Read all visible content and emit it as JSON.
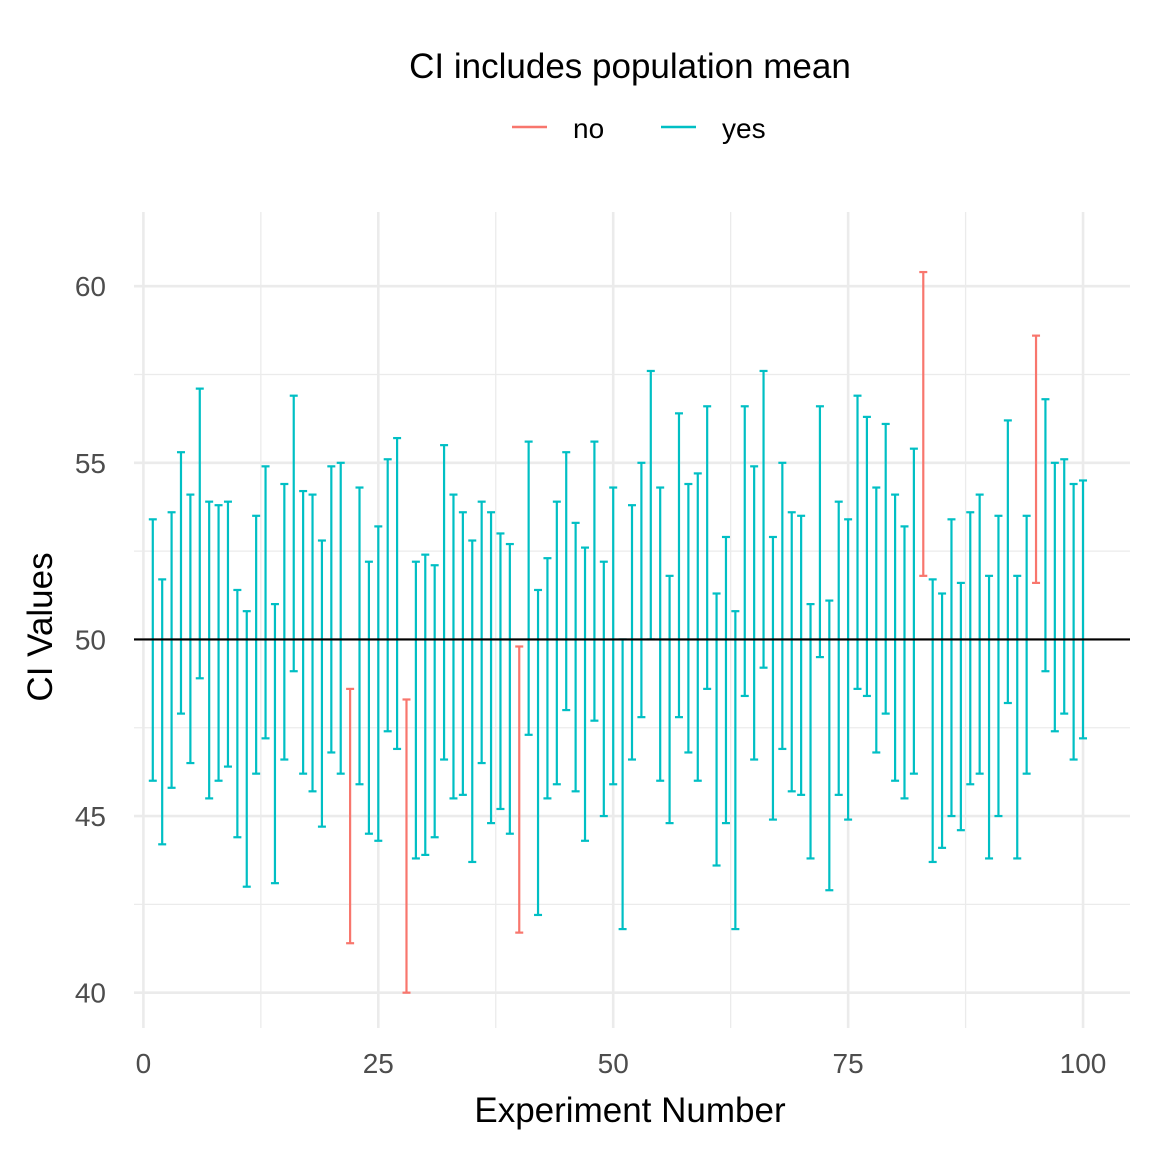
{
  "chart_data": {
    "type": "errorbar",
    "legend": {
      "title": "CI includes population mean",
      "position": "top",
      "entries": [
        {
          "label": "no",
          "color": "#F8766D"
        },
        {
          "label": "yes",
          "color": "#00BFC4"
        }
      ]
    },
    "xlabel": "Experiment Number",
    "ylabel": "CI Values",
    "xlim": [
      -1,
      105
    ],
    "ylim": [
      39,
      62.1
    ],
    "xticks": [
      0,
      25,
      50,
      75,
      100
    ],
    "yticks": [
      40,
      45,
      50,
      55,
      60
    ],
    "reference_line": {
      "y": 50,
      "color": "#000000"
    },
    "grid": true,
    "colors": {
      "no": "#F8766D",
      "yes": "#00BFC4",
      "grid": "#EBEBEB",
      "text": "#4D4D4D"
    },
    "x": [
      1,
      2,
      3,
      4,
      5,
      6,
      7,
      8,
      9,
      10,
      11,
      12,
      13,
      14,
      15,
      16,
      17,
      18,
      19,
      20,
      21,
      22,
      23,
      24,
      25,
      26,
      27,
      28,
      29,
      30,
      31,
      32,
      33,
      34,
      35,
      36,
      37,
      38,
      39,
      40,
      41,
      42,
      43,
      44,
      45,
      46,
      47,
      48,
      49,
      50,
      51,
      52,
      53,
      54,
      55,
      56,
      57,
      58,
      59,
      60,
      61,
      62,
      63,
      64,
      65,
      66,
      67,
      68,
      69,
      70,
      71,
      72,
      73,
      74,
      75,
      76,
      77,
      78,
      79,
      80,
      81,
      82,
      83,
      84,
      85,
      86,
      87,
      88,
      89,
      90,
      91,
      92,
      93,
      94,
      95,
      96,
      97,
      98,
      99,
      100
    ],
    "lower": [
      46.0,
      44.2,
      45.8,
      47.9,
      46.5,
      48.9,
      45.5,
      46.0,
      46.4,
      44.4,
      43.0,
      46.2,
      47.2,
      43.1,
      46.6,
      49.1,
      46.2,
      45.7,
      44.7,
      46.8,
      46.2,
      41.4,
      45.9,
      44.5,
      44.3,
      47.4,
      46.9,
      40.0,
      43.8,
      43.9,
      44.4,
      46.6,
      45.5,
      45.6,
      43.7,
      46.5,
      44.8,
      45.2,
      44.5,
      41.7,
      47.3,
      42.2,
      45.5,
      45.9,
      48.0,
      45.7,
      44.3,
      47.7,
      45.0,
      45.9,
      41.8,
      46.6,
      47.8,
      50.0,
      46.0,
      44.8,
      47.8,
      46.8,
      46.0,
      48.6,
      43.6,
      44.8,
      41.8,
      48.4,
      46.6,
      49.2,
      44.9,
      46.9,
      45.7,
      45.6,
      43.8,
      49.5,
      42.9,
      45.6,
      44.9,
      48.6,
      48.4,
      46.8,
      47.9,
      46.0,
      45.5,
      46.2,
      51.8,
      43.7,
      44.1,
      45.0,
      44.6,
      45.9,
      46.2,
      43.8,
      45.0,
      48.2,
      43.8,
      46.2,
      51.6,
      49.1,
      47.4,
      47.9,
      46.6,
      47.2
    ],
    "upper": [
      53.4,
      51.7,
      53.6,
      55.3,
      54.1,
      57.1,
      53.9,
      53.8,
      53.9,
      51.4,
      50.8,
      53.5,
      54.9,
      51.0,
      54.4,
      56.9,
      54.2,
      54.1,
      52.8,
      54.9,
      55.0,
      48.6,
      54.3,
      52.2,
      53.2,
      55.1,
      55.7,
      48.3,
      52.2,
      52.4,
      52.1,
      55.5,
      54.1,
      53.6,
      52.8,
      53.9,
      53.6,
      53.0,
      52.7,
      49.8,
      55.6,
      51.4,
      52.3,
      53.9,
      55.3,
      53.3,
      52.6,
      55.6,
      52.2,
      54.3,
      50.0,
      53.8,
      55.0,
      57.6,
      54.3,
      51.8,
      56.4,
      54.4,
      54.7,
      56.6,
      51.3,
      52.9,
      50.8,
      56.6,
      54.9,
      57.6,
      52.9,
      55.0,
      53.6,
      53.5,
      51.0,
      56.6,
      51.1,
      53.9,
      53.4,
      56.9,
      56.3,
      54.3,
      56.1,
      54.1,
      53.2,
      55.4,
      60.4,
      51.7,
      51.3,
      53.4,
      51.6,
      53.6,
      54.1,
      51.8,
      53.5,
      56.2,
      51.8,
      53.5,
      58.6,
      56.8,
      55.0,
      55.1,
      54.4,
      54.5
    ],
    "group": [
      "yes",
      "yes",
      "yes",
      "yes",
      "yes",
      "yes",
      "yes",
      "yes",
      "yes",
      "yes",
      "yes",
      "yes",
      "yes",
      "yes",
      "yes",
      "yes",
      "yes",
      "yes",
      "yes",
      "yes",
      "yes",
      "no",
      "yes",
      "yes",
      "yes",
      "yes",
      "yes",
      "no",
      "yes",
      "yes",
      "yes",
      "yes",
      "yes",
      "yes",
      "yes",
      "yes",
      "yes",
      "yes",
      "yes",
      "no",
      "yes",
      "yes",
      "yes",
      "yes",
      "yes",
      "yes",
      "yes",
      "yes",
      "yes",
      "yes",
      "yes",
      "yes",
      "yes",
      "yes",
      "yes",
      "yes",
      "yes",
      "yes",
      "yes",
      "yes",
      "yes",
      "yes",
      "yes",
      "yes",
      "yes",
      "yes",
      "yes",
      "yes",
      "yes",
      "yes",
      "yes",
      "yes",
      "yes",
      "yes",
      "yes",
      "yes",
      "yes",
      "yes",
      "yes",
      "yes",
      "yes",
      "yes",
      "no",
      "yes",
      "yes",
      "yes",
      "yes",
      "yes",
      "yes",
      "yes",
      "yes",
      "yes",
      "yes",
      "yes",
      "no",
      "yes",
      "yes",
      "yes",
      "yes",
      "yes"
    ]
  }
}
